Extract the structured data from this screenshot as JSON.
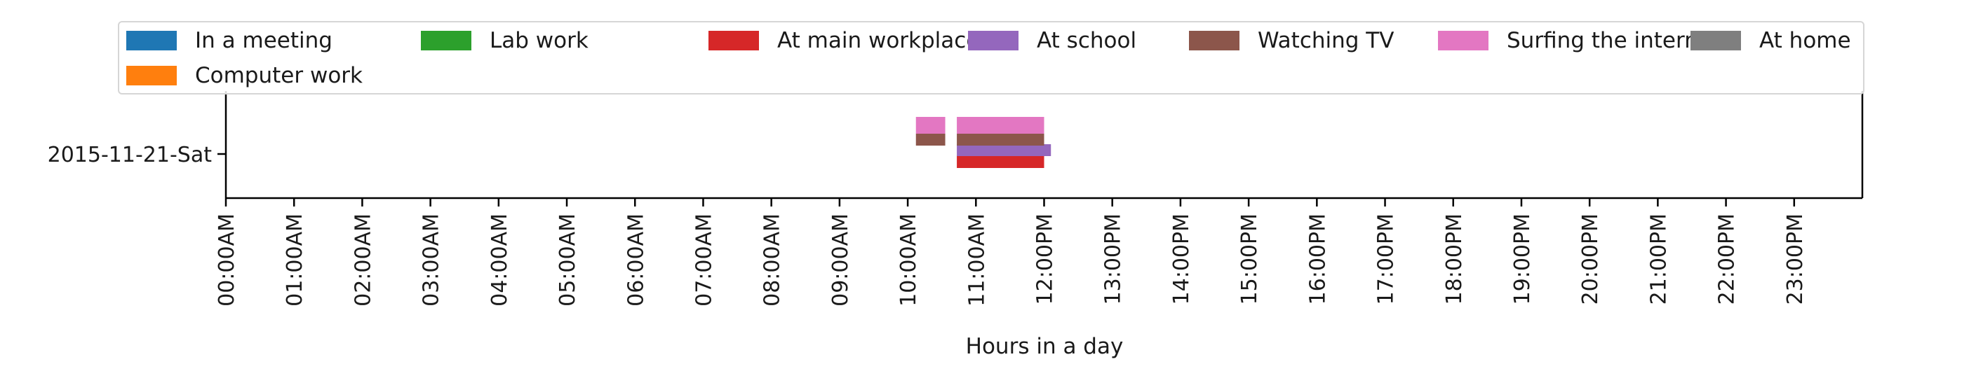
{
  "chart_data": {
    "type": "bar",
    "orientation": "horizontal",
    "title": "",
    "xlabel": "Hours in a day",
    "ylabel": "",
    "xlim": [
      0,
      24
    ],
    "categories": [
      "2015-11-21-Sat"
    ],
    "x_ticks": [
      "00:00AM",
      "01:00AM",
      "02:00AM",
      "03:00AM",
      "04:00AM",
      "05:00AM",
      "06:00AM",
      "07:00AM",
      "08:00AM",
      "09:00AM",
      "10:00AM",
      "11:00AM",
      "12:00PM",
      "13:00PM",
      "14:00PM",
      "15:00PM",
      "16:00PM",
      "17:00PM",
      "18:00PM",
      "19:00PM",
      "20:00PM",
      "21:00PM",
      "22:00PM",
      "23:00PM"
    ],
    "grid": false,
    "legend_position": "top",
    "series": [
      {
        "name": "In a meeting",
        "color": "#1f77b4",
        "intervals": []
      },
      {
        "name": "Computer work",
        "color": "#ff7f0e",
        "intervals": []
      },
      {
        "name": "Lab work",
        "color": "#2ca02c",
        "intervals": []
      },
      {
        "name": "At main workplace",
        "color": "#d62728",
        "intervals": [
          [
            10.72,
            12.0
          ]
        ]
      },
      {
        "name": "At school",
        "color": "#9467bd",
        "intervals": [
          [
            10.72,
            12.1
          ]
        ]
      },
      {
        "name": "Watching TV",
        "color": "#8c564b",
        "intervals": [
          [
            10.12,
            10.55
          ],
          [
            10.72,
            12.0
          ]
        ]
      },
      {
        "name": "Surfing the internet",
        "color": "#e377c2",
        "intervals": [
          [
            10.12,
            10.55
          ],
          [
            10.72,
            12.0
          ]
        ]
      },
      {
        "name": "At home",
        "color": "#7f7f7f",
        "intervals": []
      }
    ]
  }
}
